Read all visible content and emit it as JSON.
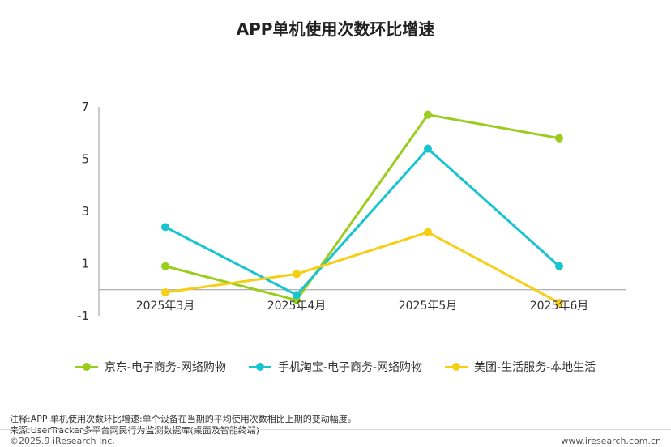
{
  "chart_data": {
    "type": "line",
    "title": "APP单机使用次数环比增速",
    "categories": [
      "2025年3月",
      "2025年4月",
      "2025年5月",
      "2025年6月"
    ],
    "yticks": [
      7,
      5,
      3,
      1,
      -1
    ],
    "ylim": [
      -1,
      7
    ],
    "grid": false,
    "legend_position": "bottom",
    "series": [
      {
        "name": "京东-电子商务-网络购物",
        "values": [
          0.9,
          -0.4,
          6.7,
          5.8
        ],
        "color": "#9acd1c"
      },
      {
        "name": "手机淘宝-电子商务-网络购物",
        "values": [
          2.4,
          -0.2,
          5.4,
          0.9
        ],
        "color": "#17c5d0"
      },
      {
        "name": "美团-生活服务-本地生活",
        "values": [
          -0.1,
          0.6,
          2.2,
          -0.5
        ],
        "color": "#f6cf14"
      }
    ]
  },
  "notes": {
    "note1": "注释:APP 单机使用次数环比增速:单个设备在当期的平均使用次数相比上期的变动幅度。",
    "source": "来源:UserTracker多平台网民行为监测数据库(桌面及智能终端)",
    "copyright": "©2025.9 iResearch Inc.",
    "site": "www.iresearch.com.cn"
  }
}
